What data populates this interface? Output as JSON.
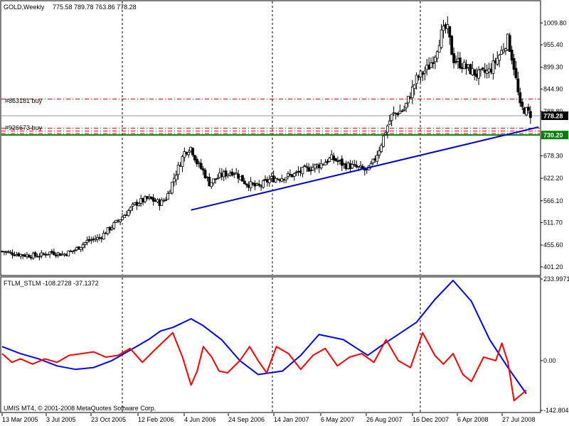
{
  "main_pane": {
    "symbol_label": "GOLD,Weekly",
    "ohlc_label": "775.58 789.78 763.86 778.28"
  },
  "order_labels": [
    {
      "text": "#863181 buy",
      "price": 820
    },
    {
      "text": "#926673 buy",
      "price": 747
    }
  ],
  "indicator_pane": {
    "label": "FTLM_STLM -108.2728 -37.1372"
  },
  "copyright": "UMIS MT4, © 2001-2008 MetaQuotes Software Corp.",
  "price_tags": [
    {
      "text": "778.28",
      "value": 778.28,
      "color": "#000000",
      "text_color": "#ffffff"
    },
    {
      "text": "730.20",
      "value": 730.2,
      "color": "#008000",
      "text_color": "#ffffff"
    }
  ],
  "colors": {
    "grid_separator": "#000000",
    "candle": "#000000",
    "trendline": "#0000cc",
    "order_line": "#cc0000",
    "support_line": "#008000",
    "ftlm": "#ff0000",
    "stlm": "#0000ff"
  },
  "chart_data": [
    {
      "type": "candlestick",
      "title": "GOLD,Weekly",
      "ylim": [
        385,
        1060
      ],
      "y_ticks": [
        "1009.80",
        "955.40",
        "899.30",
        "844.90",
        "788.80",
        "678.30",
        "622.20",
        "566.10",
        "511.70",
        "455.60",
        "401.20"
      ],
      "y_tick_values": [
        1009.8,
        955.4,
        899.3,
        844.9,
        788.8,
        678.3,
        622.2,
        566.1,
        511.7,
        455.6,
        401.2
      ],
      "x_ticks": [
        "13 Mar 2005",
        "3 Jul 2005",
        "23 Oct 2005",
        "12 Feb 2006",
        "4 Jun 2006",
        "24 Sep 2006",
        "14 Jan 2007",
        "6 May 2007",
        "26 Aug 2007",
        "16 Dec 2007",
        "6 Apr 2008",
        "27 Jul 2008"
      ],
      "close_path": [
        [
          0,
          440
        ],
        [
          10,
          434
        ],
        [
          20,
          430
        ],
        [
          30,
          429
        ],
        [
          40,
          438
        ],
        [
          50,
          432
        ],
        [
          60,
          444
        ],
        [
          70,
          466
        ],
        [
          80,
          474
        ],
        [
          90,
          502
        ],
        [
          100,
          530
        ],
        [
          110,
          560
        ],
        [
          120,
          572
        ],
        [
          130,
          560
        ],
        [
          135,
          575
        ],
        [
          140,
          615
        ],
        [
          150,
          690
        ],
        [
          155,
          700
        ],
        [
          160,
          660
        ],
        [
          165,
          640
        ],
        [
          170,
          610
        ],
        [
          180,
          630
        ],
        [
          190,
          640
        ],
        [
          200,
          610
        ],
        [
          210,
          600
        ],
        [
          220,
          620
        ],
        [
          230,
          625
        ],
        [
          240,
          632
        ],
        [
          250,
          646
        ],
        [
          260,
          655
        ],
        [
          270,
          672
        ],
        [
          275,
          666
        ],
        [
          280,
          656
        ],
        [
          290,
          650
        ],
        [
          300,
          640
        ],
        [
          305,
          665
        ],
        [
          310,
          700
        ],
        [
          315,
          745
        ],
        [
          320,
          780
        ],
        [
          330,
          795
        ],
        [
          340,
          870
        ],
        [
          350,
          900
        ],
        [
          355,
          930
        ],
        [
          360,
          980
        ],
        [
          365,
          1000
        ],
        [
          370,
          920
        ],
        [
          380,
          900
        ],
        [
          390,
          880
        ],
        [
          400,
          890
        ],
        [
          410,
          940
        ],
        [
          415,
          970
        ],
        [
          420,
          900
        ],
        [
          425,
          800
        ],
        [
          430,
          790
        ],
        [
          435,
          778.28
        ]
      ],
      "x_range": [
        0,
        440
      ],
      "trendline": {
        "from": [
          155,
          543
        ],
        "to": [
          440,
          750
        ]
      },
      "horizontal_lines": [
        {
          "name": "#863181 buy",
          "price": 820,
          "style": "dash-dot"
        },
        {
          "name": "#926673 buy",
          "price": 747,
          "style": "dash-dot"
        },
        {
          "price": 740,
          "style": "dash-dot"
        },
        {
          "price": 734,
          "style": "dash-dot"
        },
        {
          "name": "current",
          "price": 778.28,
          "style": "solid"
        },
        {
          "name": "support",
          "price": 730.2,
          "style": "solid"
        }
      ]
    },
    {
      "type": "line",
      "title": "FTLM_STLM -108.2728 -37.1372",
      "ylim": [
        -142.804,
        233.9971
      ],
      "y_ticks": [
        "233.9971",
        "0.00",
        "-142.804"
      ],
      "y_tick_values": [
        233.9971,
        0,
        -142.804
      ],
      "x_range": [
        0,
        440
      ],
      "series": [
        {
          "values": [
            [
              0,
              40
            ],
            [
              15,
              20
            ],
            [
              30,
              5
            ],
            [
              45,
              -15
            ],
            [
              60,
              -25
            ],
            [
              75,
              -20
            ],
            [
              90,
              0
            ],
            [
              105,
              30
            ],
            [
              120,
              60
            ],
            [
              130,
              85
            ],
            [
              140,
              95
            ],
            [
              155,
              120
            ],
            [
              165,
              100
            ],
            [
              180,
              60
            ],
            [
              195,
              0
            ],
            [
              210,
              -40
            ],
            [
              230,
              -30
            ],
            [
              245,
              15
            ],
            [
              260,
              75
            ],
            [
              280,
              60
            ],
            [
              300,
              15
            ],
            [
              310,
              40
            ],
            [
              325,
              75
            ],
            [
              340,
              110
            ],
            [
              355,
              175
            ],
            [
              370,
              230
            ],
            [
              385,
              170
            ],
            [
              400,
              60
            ],
            [
              415,
              -20
            ],
            [
              430,
              -95
            ]
          ]
        },
        {
          "values": [
            [
              0,
              20
            ],
            [
              8,
              -5
            ],
            [
              15,
              5
            ],
            [
              25,
              -10
            ],
            [
              35,
              5
            ],
            [
              45,
              -5
            ],
            [
              55,
              15
            ],
            [
              65,
              20
            ],
            [
              75,
              25
            ],
            [
              85,
              10
            ],
            [
              95,
              15
            ],
            [
              105,
              35
            ],
            [
              115,
              -5
            ],
            [
              125,
              30
            ],
            [
              140,
              80
            ],
            [
              148,
              10
            ],
            [
              155,
              -70
            ],
            [
              160,
              -30
            ],
            [
              165,
              40
            ],
            [
              172,
              10
            ],
            [
              178,
              -30
            ],
            [
              185,
              -35
            ],
            [
              195,
              0
            ],
            [
              203,
              40
            ],
            [
              210,
              0
            ],
            [
              217,
              -35
            ],
            [
              225,
              40
            ],
            [
              235,
              20
            ],
            [
              245,
              -25
            ],
            [
              255,
              15
            ],
            [
              265,
              35
            ],
            [
              275,
              -15
            ],
            [
              285,
              10
            ],
            [
              295,
              20
            ],
            [
              305,
              -5
            ],
            [
              315,
              60
            ],
            [
              325,
              0
            ],
            [
              335,
              -20
            ],
            [
              345,
              80
            ],
            [
              355,
              15
            ],
            [
              362,
              -10
            ],
            [
              370,
              20
            ],
            [
              378,
              -40
            ],
            [
              385,
              -60
            ],
            [
              395,
              10
            ],
            [
              405,
              0
            ],
            [
              410,
              50
            ],
            [
              415,
              -5
            ],
            [
              420,
              -115
            ],
            [
              430,
              -85
            ]
          ]
        }
      ]
    }
  ]
}
